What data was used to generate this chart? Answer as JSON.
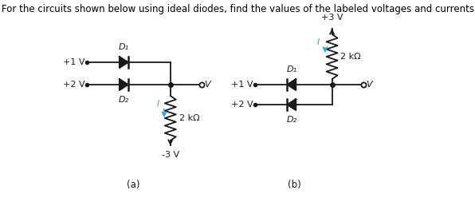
{
  "title": "For the circuits shown below using ideal diodes, find the values of the labeled voltages and currents",
  "bg_color": "#ffffff",
  "text_color": "#000000",
  "cyan_color": "#29a8e0",
  "circuit_color": "#1a1a1a",
  "label_a": "(a)",
  "label_b": "(b)",
  "v1_label": "+1 V",
  "v2_label": "+2 V",
  "v3n_label": "-3 V",
  "v3p_label": "+3 V",
  "vout_label": "V",
  "D1_label": "D₁",
  "D2_label": "D₂",
  "R_label": "2 kΩ",
  "I_label": "I"
}
